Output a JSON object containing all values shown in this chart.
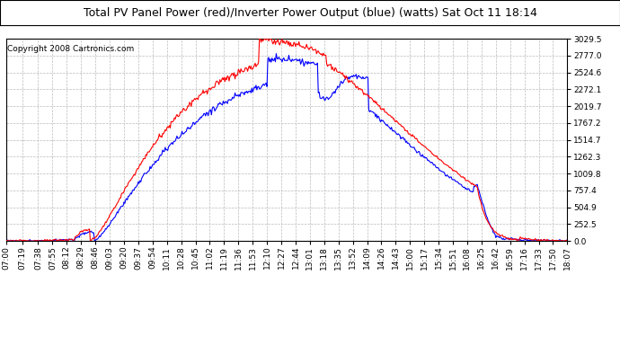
{
  "title": "Total PV Panel Power (red)/Inverter Power Output (blue) (watts) Sat Oct 11 18:14",
  "copyright": "Copyright 2008 Cartronics.com",
  "bg_color": "#ffffff",
  "plot_bg_color": "#ffffff",
  "grid_color": "#bbbbbb",
  "y_ticks": [
    0.0,
    252.5,
    504.9,
    757.4,
    1009.8,
    1262.3,
    1514.7,
    1767.2,
    2019.7,
    2272.1,
    2524.6,
    2777.0,
    3029.5
  ],
  "ylim": [
    0,
    3029.5
  ],
  "x_labels": [
    "07:00",
    "07:19",
    "07:38",
    "07:55",
    "08:12",
    "08:29",
    "08:46",
    "09:03",
    "09:20",
    "09:37",
    "09:54",
    "10:11",
    "10:28",
    "10:45",
    "11:02",
    "11:19",
    "11:36",
    "11:53",
    "12:10",
    "12:27",
    "12:44",
    "13:01",
    "13:18",
    "13:35",
    "13:52",
    "14:09",
    "14:26",
    "14:43",
    "15:00",
    "15:17",
    "15:34",
    "15:51",
    "16:08",
    "16:25",
    "16:42",
    "16:59",
    "17:16",
    "17:33",
    "17:50",
    "18:07"
  ],
  "title_fontsize": 9,
  "copyright_fontsize": 6.5,
  "tick_fontsize": 6.5,
  "line_width": 0.8,
  "red_color": "#ff0000",
  "blue_color": "#0000ff"
}
